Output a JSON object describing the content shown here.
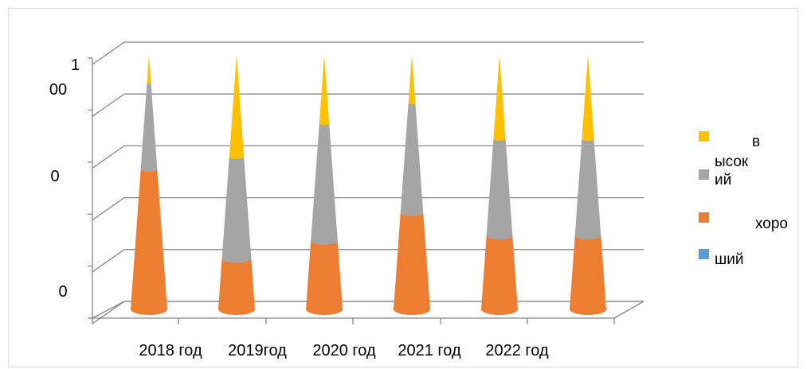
{
  "chart_data": {
    "type": "bar",
    "shape": "cone",
    "stacked": true,
    "percent_stacked": true,
    "title": "",
    "xlabel": "",
    "ylabel": "",
    "categories": [
      "2018  год",
      "2019год",
      "2020  год",
      "2021  год",
      "2022  год",
      ""
    ],
    "y_tick_labels": [
      "0",
      "0",
      "00"
    ],
    "y_tick_label_fragment": "1",
    "ylim": [
      0,
      100
    ],
    "grid": true,
    "legend_position": "right",
    "series": [
      {
        "color": "#5b9bd5",
        "values": [
          0,
          0,
          0,
          0,
          0,
          0
        ]
      },
      {
        "color": "#ed7d31",
        "values": [
          55,
          20,
          27,
          38,
          29,
          29
        ]
      },
      {
        "color": "#a5a5a5",
        "values": [
          34,
          40,
          46,
          43,
          38,
          38
        ]
      },
      {
        "color": "#ffc000",
        "values": [
          11,
          40,
          27,
          19,
          33,
          33
        ]
      }
    ],
    "legend": [
      {
        "label": "в",
        "color": "#ffc000"
      },
      {
        "label": "ысок",
        "color": ""
      },
      {
        "label": "ий",
        "color": "#a5a5a5"
      },
      {
        "label": "хоро",
        "color": "#ed7d31"
      },
      {
        "label": "ший",
        "color": "#5b9bd5"
      }
    ]
  }
}
